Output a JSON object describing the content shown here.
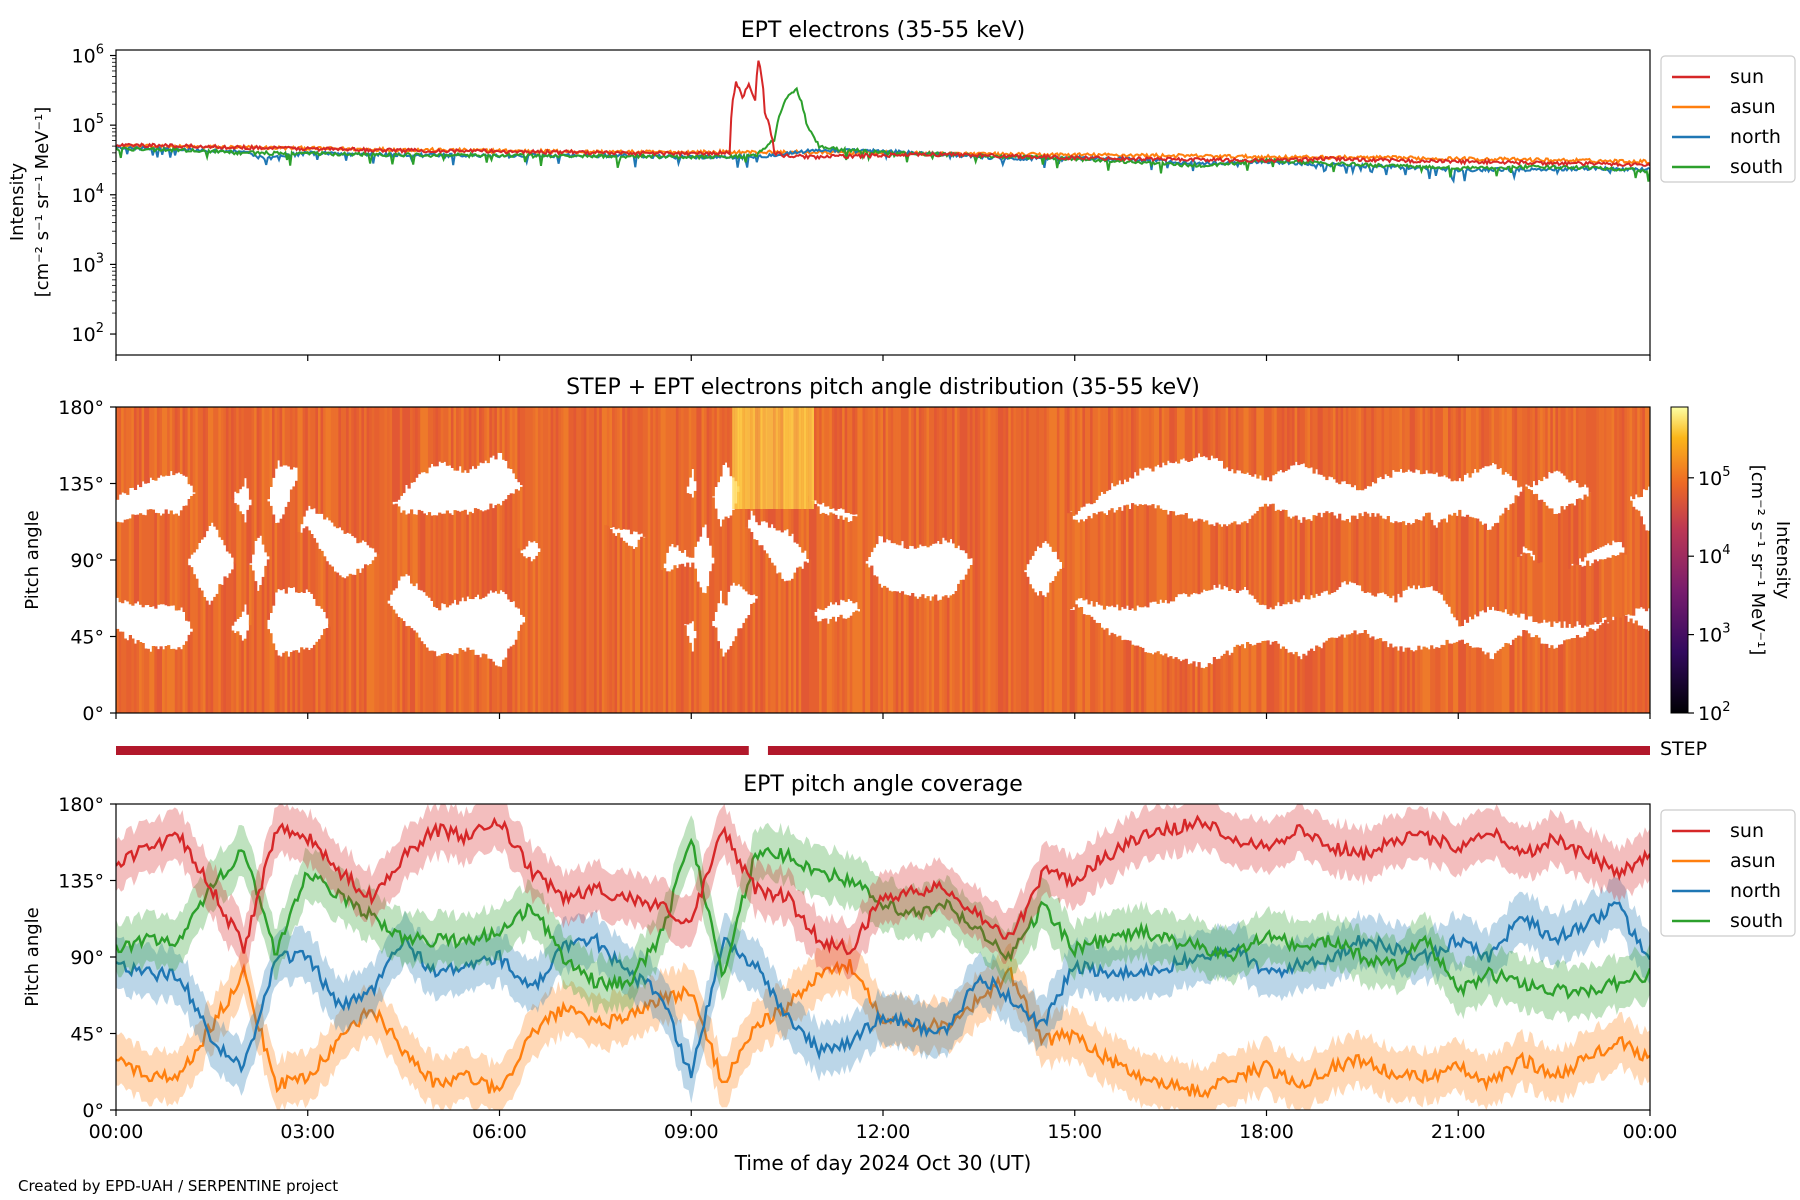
{
  "figure": {
    "footer": "Created by EPD-UAH / SERPENTINE project"
  },
  "colors": {
    "sun": "#d62728",
    "asun": "#ff7f0e",
    "north": "#1f77b4",
    "south": "#2ca02c",
    "step_bar": "#b2182b",
    "pad_fill": "#e8682e",
    "pad_high": "#ffd54a"
  },
  "chart_data": [
    {
      "type": "line",
      "title": "EPT electrons (35-55 keV)",
      "ylabel_line1": "Intensity",
      "ylabel_line2": "[cm⁻² s⁻¹ sr⁻¹ MeV⁻¹]",
      "yscale": "log",
      "ylim": [
        50,
        1200000
      ],
      "yticks": [
        {
          "value": 100,
          "base": "10",
          "exp": "2"
        },
        {
          "value": 1000,
          "base": "10",
          "exp": "3"
        },
        {
          "value": 10000,
          "base": "10",
          "exp": "4"
        },
        {
          "value": 100000,
          "base": "10",
          "exp": "5"
        },
        {
          "value": 1000000,
          "base": "10",
          "exp": "6"
        }
      ],
      "xlim_hours": [
        0,
        24
      ],
      "legend_position": "outside-right-top",
      "series": [
        {
          "name": "sun",
          "color_key": "sun",
          "x": [
            0,
            1,
            2,
            3,
            4,
            5,
            6,
            7,
            8,
            9,
            9.6,
            9.7,
            9.8,
            9.9,
            10.0,
            10.05,
            10.15,
            10.3,
            10.5,
            11,
            12,
            13,
            14,
            15,
            16,
            17,
            18,
            19,
            20,
            21,
            22,
            23,
            24
          ],
          "y": [
            52000,
            50000,
            48000,
            46000,
            44000,
            43000,
            42000,
            41000,
            40000,
            39000,
            40000,
            400000,
            250000,
            380000,
            220000,
            850000,
            150000,
            40000,
            36000,
            35000,
            37000,
            38000,
            36000,
            34000,
            33000,
            32000,
            31000,
            33000,
            31000,
            30000,
            29000,
            28000,
            27000
          ]
        },
        {
          "name": "asun",
          "color_key": "asun",
          "x": [
            0,
            2,
            4,
            6,
            8,
            10,
            12,
            14,
            16,
            18,
            20,
            22,
            24
          ],
          "y": [
            50000,
            48000,
            45000,
            43000,
            41000,
            41000,
            40000,
            38000,
            37000,
            35000,
            34000,
            32000,
            30000
          ]
        },
        {
          "name": "north",
          "color_key": "north",
          "x": [
            0,
            1,
            2,
            2.3,
            3,
            4,
            5,
            6,
            7,
            8,
            9,
            10,
            11,
            12,
            13,
            14,
            15,
            16,
            17,
            18,
            19,
            20,
            21,
            22,
            23,
            24
          ],
          "y": [
            48000,
            45000,
            42000,
            33000,
            40000,
            38000,
            37000,
            36000,
            37000,
            36000,
            35000,
            35000,
            44000,
            42000,
            38000,
            33000,
            34000,
            32000,
            28000,
            30000,
            27000,
            25000,
            23000,
            23000,
            24000,
            23000
          ]
        },
        {
          "name": "south",
          "color_key": "south",
          "x": [
            0,
            1,
            2,
            3,
            4,
            5,
            6,
            7,
            8,
            9,
            10,
            10.3,
            10.5,
            10.65,
            10.8,
            11,
            12,
            13,
            14,
            15,
            16,
            17,
            18,
            19,
            20,
            21,
            22,
            23,
            24
          ],
          "y": [
            46000,
            44000,
            40000,
            39000,
            38000,
            37000,
            37000,
            36000,
            36000,
            35000,
            36000,
            60000,
            250000,
            320000,
            100000,
            48000,
            40000,
            38000,
            35000,
            33000,
            29000,
            26000,
            31000,
            28000,
            26000,
            24000,
            25000,
            25000,
            22000
          ]
        }
      ]
    },
    {
      "type": "heatmap",
      "title": "STEP + EPT electrons pitch angle distribution (35-55 keV)",
      "ylabel": "Pitch angle",
      "ylim": [
        0,
        180
      ],
      "yticks": [
        "0°",
        "45°",
        "90°",
        "135°",
        "180°"
      ],
      "xlim_hours": [
        0,
        24
      ],
      "colorbar": {
        "label_line1": "Intensity",
        "label_line2": "[cm⁻² s⁻¹ sr⁻¹ MeV⁻¹]",
        "scale": "log",
        "range": [
          100,
          800000
        ],
        "ticks": [
          {
            "value": 100,
            "base": "10",
            "exp": "2"
          },
          {
            "value": 1000,
            "base": "10",
            "exp": "3"
          },
          {
            "value": 10000,
            "base": "10",
            "exp": "4"
          },
          {
            "value": 100000,
            "base": "10",
            "exp": "5"
          }
        ]
      },
      "typical_intensity": 40000,
      "enhancement": {
        "x_range_hours": [
          9.6,
          10.9
        ],
        "y_range_deg": [
          120,
          180
        ],
        "intensity": 300000
      }
    },
    {
      "type": "bar",
      "label": "STEP",
      "segments_hours": [
        [
          0,
          9.9
        ],
        [
          10.2,
          24
        ]
      ]
    },
    {
      "type": "line",
      "title": "EPT pitch angle coverage",
      "ylabel": "Pitch angle",
      "ylim": [
        0,
        180
      ],
      "yticks": [
        "0°",
        "45°",
        "90°",
        "135°",
        "180°"
      ],
      "xlabel": "Time of day 2024 Oct 30 (UT)",
      "xticks": [
        "00:00",
        "03:00",
        "06:00",
        "09:00",
        "12:00",
        "15:00",
        "18:00",
        "21:00",
        "00:00"
      ],
      "xlim_hours": [
        0,
        24
      ],
      "legend_position": "outside-right-top",
      "band_halfwidth_deg": 15,
      "series": [
        {
          "name": "sun",
          "color_key": "sun",
          "x": [
            0,
            0.5,
            1,
            1.5,
            2,
            2.5,
            3,
            3.5,
            4,
            4.5,
            5,
            5.5,
            6,
            6.5,
            7,
            7.5,
            8,
            8.5,
            9,
            9.5,
            10,
            10.5,
            11,
            11.5,
            12,
            12.5,
            13,
            13.5,
            14,
            14.5,
            15,
            15.5,
            16,
            16.5,
            17,
            17.5,
            18,
            18.5,
            19,
            19.5,
            20,
            20.5,
            21,
            21.5,
            22,
            22.5,
            23,
            23.5,
            24
          ],
          "y": [
            145,
            155,
            160,
            130,
            95,
            165,
            160,
            140,
            125,
            150,
            165,
            160,
            170,
            140,
            125,
            130,
            125,
            120,
            110,
            165,
            130,
            125,
            100,
            95,
            125,
            130,
            130,
            115,
            100,
            140,
            135,
            150,
            160,
            165,
            170,
            160,
            155,
            165,
            155,
            150,
            160,
            160,
            155,
            165,
            150,
            160,
            150,
            140,
            150
          ]
        },
        {
          "name": "asun",
          "color_key": "asun",
          "x": [
            0,
            0.5,
            1,
            1.5,
            2,
            2.5,
            3,
            3.5,
            4,
            4.5,
            5,
            5.5,
            6,
            6.5,
            7,
            7.5,
            8,
            8.5,
            9,
            9.5,
            10,
            10.5,
            11,
            11.5,
            12,
            12.5,
            13,
            13.5,
            14,
            14.5,
            15,
            15.5,
            16,
            16.5,
            17,
            17.5,
            18,
            18.5,
            19,
            19.5,
            20,
            20.5,
            21,
            21.5,
            22,
            22.5,
            23,
            23.5,
            24
          ],
          "y": [
            30,
            20,
            20,
            50,
            80,
            15,
            20,
            40,
            60,
            35,
            15,
            20,
            10,
            45,
            60,
            50,
            55,
            65,
            70,
            15,
            50,
            60,
            80,
            85,
            55,
            50,
            50,
            65,
            80,
            40,
            45,
            30,
            20,
            15,
            10,
            20,
            25,
            15,
            25,
            30,
            20,
            20,
            25,
            15,
            30,
            20,
            30,
            40,
            30
          ]
        },
        {
          "name": "north",
          "color_key": "north",
          "x": [
            0,
            0.5,
            1,
            1.5,
            2,
            2.5,
            3,
            3.5,
            4,
            4.5,
            5,
            5.5,
            6,
            6.5,
            7,
            7.5,
            8,
            8.5,
            9,
            9.5,
            10,
            10.5,
            11,
            11.5,
            12,
            12.5,
            13,
            13.5,
            14,
            14.5,
            15,
            15.5,
            16,
            16.5,
            17,
            17.5,
            18,
            18.5,
            19,
            19.5,
            20,
            20.5,
            21,
            21.5,
            22,
            22.5,
            23,
            23.5,
            24
          ],
          "y": [
            85,
            80,
            80,
            40,
            25,
            90,
            90,
            60,
            70,
            100,
            80,
            85,
            90,
            70,
            95,
            100,
            80,
            70,
            20,
            100,
            85,
            55,
            35,
            40,
            55,
            50,
            45,
            80,
            65,
            50,
            85,
            80,
            80,
            85,
            90,
            95,
            80,
            85,
            90,
            100,
            95,
            90,
            100,
            90,
            115,
            100,
            110,
            120,
            85
          ]
        },
        {
          "name": "south",
          "color_key": "south",
          "x": [
            0,
            0.5,
            1,
            1.5,
            2,
            2.5,
            3,
            3.5,
            4,
            4.5,
            5,
            5.5,
            6,
            6.5,
            7,
            7.5,
            8,
            8.5,
            9,
            9.5,
            10,
            10.5,
            11,
            11.5,
            12,
            12.5,
            13,
            13.5,
            14,
            14.5,
            15,
            15.5,
            16,
            16.5,
            17,
            17.5,
            18,
            18.5,
            19,
            19.5,
            20,
            20.5,
            21,
            21.5,
            22,
            22.5,
            23,
            23.5,
            24
          ],
          "y": [
            95,
            100,
            100,
            130,
            155,
            90,
            140,
            125,
            115,
            100,
            100,
            100,
            105,
            120,
            90,
            75,
            75,
            100,
            160,
            80,
            150,
            150,
            140,
            135,
            120,
            115,
            120,
            105,
            90,
            120,
            95,
            100,
            105,
            100,
            95,
            90,
            105,
            95,
            100,
            90,
            85,
            100,
            70,
            80,
            75,
            70,
            70,
            75,
            80
          ]
        }
      ]
    }
  ]
}
